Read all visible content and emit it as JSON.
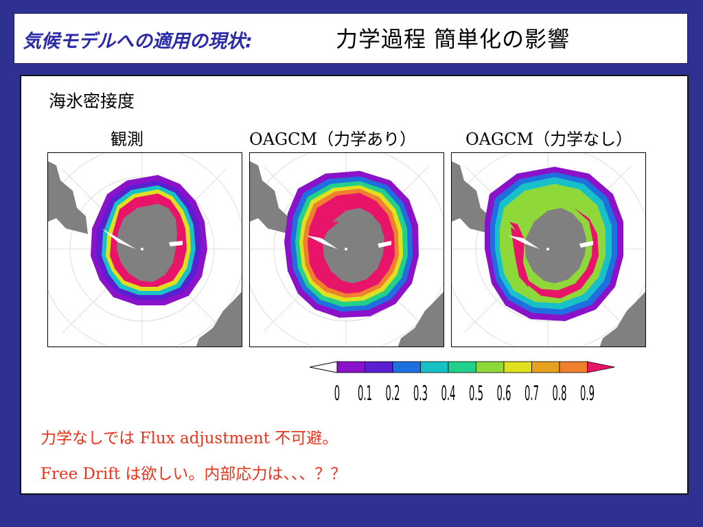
{
  "header": {
    "title_italic": "気候モデルへの適用の現状:",
    "title_rest": "力学過程  簡単化の影響"
  },
  "main": {
    "subtitle": "海氷密接度",
    "maps": [
      {
        "label": "観測"
      },
      {
        "label": "OAGCM（力学あり）"
      },
      {
        "label": "OAGCM（力学なし）"
      }
    ],
    "colorbar": {
      "ticks": [
        "0",
        "0.1",
        "0.2",
        "0.3",
        "0.4",
        "0.5",
        "0.6",
        "0.7",
        "0.8",
        "0.9"
      ],
      "colors": [
        "#8a12c8",
        "#5a1fd0",
        "#1f6fe0",
        "#18c0c8",
        "#22d08a",
        "#8ed83a",
        "#e0e020",
        "#e8a020",
        "#f08030",
        "#e8146a"
      ]
    },
    "notes": [
      "力学なしでは Flux adjustment 不可避。",
      "Free Drift は欲しい。内部応力は、、、？？"
    ]
  },
  "colors": {
    "background": "#2e3192",
    "title_italic": "#2a2aa8",
    "note": "#e8331a",
    "land": "#808080"
  }
}
